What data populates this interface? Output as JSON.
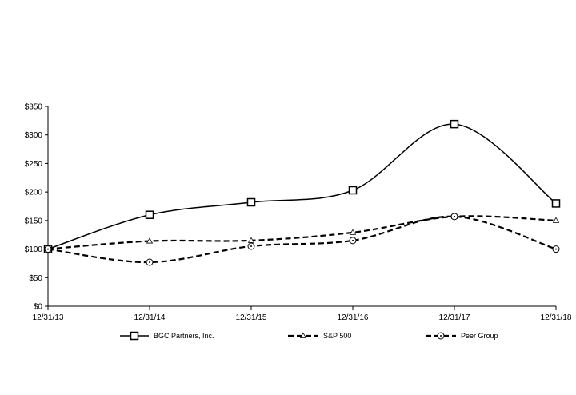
{
  "chart_data": {
    "type": "line",
    "title": "",
    "xlabel": "",
    "ylabel": "",
    "categories": [
      "12/31/13",
      "12/31/14",
      "12/31/15",
      "12/31/16",
      "12/31/17",
      "12/31/18"
    ],
    "ylim": [
      0,
      350
    ],
    "yticks": [
      0,
      50,
      100,
      150,
      200,
      250,
      300,
      350
    ],
    "ytick_labels": [
      "$0",
      "$50",
      "$100",
      "$150",
      "$200",
      "$250",
      "$300",
      "$350"
    ],
    "grid": false,
    "legend_position": "bottom",
    "series": [
      {
        "name": "BGC Partners, Inc.",
        "values": [
          100,
          160,
          182,
          203,
          319,
          180
        ],
        "marker": "square",
        "line_style": "solid",
        "color": "#000000"
      },
      {
        "name": "S&P 500",
        "values": [
          100,
          114,
          115,
          129,
          157,
          150
        ],
        "marker": "triangle",
        "line_style": "dashed",
        "color": "#000000"
      },
      {
        "name": "Peer Group",
        "values": [
          100,
          77,
          105,
          115,
          157,
          100
        ],
        "marker": "circle",
        "line_style": "dashed",
        "color": "#000000"
      }
    ]
  }
}
